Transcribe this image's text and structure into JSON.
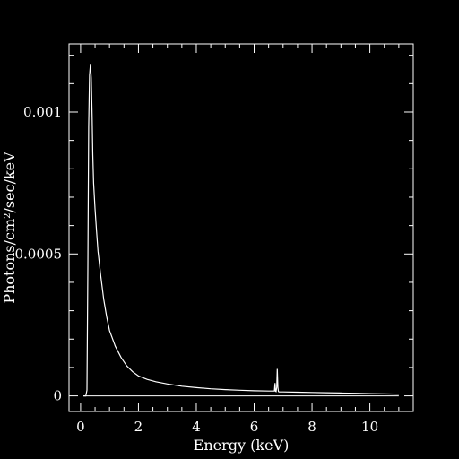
{
  "chart_data": {
    "type": "line",
    "title": "",
    "xlabel": "Energy (keV)",
    "ylabel": "Photons/cm²/sec/keV",
    "xlim": [
      -0.4,
      11.5
    ],
    "ylim": [
      -5.5e-05,
      0.00124
    ],
    "x_ticks": [
      0,
      2,
      4,
      6,
      8,
      10
    ],
    "x_tick_labels": [
      "0",
      "2",
      "4",
      "6",
      "8",
      "10"
    ],
    "y_ticks": [
      0,
      0.0005,
      0.001
    ],
    "y_tick_labels": [
      "0",
      "0.0005",
      "0.001"
    ],
    "grid": false,
    "series": [
      {
        "name": "",
        "color": "#ffffff",
        "x": [
          0.1,
          0.18,
          0.22,
          0.25,
          0.28,
          0.31,
          0.34,
          0.37,
          0.4,
          0.42,
          0.45,
          0.5,
          0.55,
          0.6,
          0.7,
          0.8,
          0.9,
          1.0,
          1.2,
          1.4,
          1.6,
          1.8,
          2.0,
          2.3,
          2.6,
          3.0,
          3.5,
          4.0,
          4.5,
          5.0,
          5.5,
          6.0,
          6.5,
          6.7,
          6.72,
          6.74,
          6.76,
          6.78,
          6.8,
          6.82,
          6.84,
          6.86,
          6.9,
          7.0,
          7.5,
          8.0,
          8.5,
          9.0,
          9.5,
          10.0,
          10.5,
          11.0
        ],
        "y": [
          0.0,
          0.0,
          2e-05,
          0.00045,
          0.00095,
          0.00113,
          0.00117,
          0.00112,
          0.00098,
          0.00085,
          0.00075,
          0.00066,
          0.00058,
          0.00051,
          0.00042,
          0.00034,
          0.00028,
          0.00023,
          0.000175,
          0.000135,
          0.000105,
          8.5e-05,
          7e-05,
          5.8e-05,
          5e-05,
          4.2e-05,
          3.4e-05,
          2.9e-05,
          2.5e-05,
          2.2e-05,
          2e-05,
          1.8e-05,
          1.7e-05,
          1.7e-05,
          4.5e-05,
          1.6e-05,
          1.5e-05,
          3e-05,
          9.5e-05,
          3e-05,
          1.5e-05,
          1.4e-05,
          1.4e-05,
          1.4e-05,
          1.3e-05,
          1.2e-05,
          1.1e-05,
          1e-05,
          9e-06,
          8e-06,
          7e-06,
          6e-06
        ]
      }
    ]
  }
}
